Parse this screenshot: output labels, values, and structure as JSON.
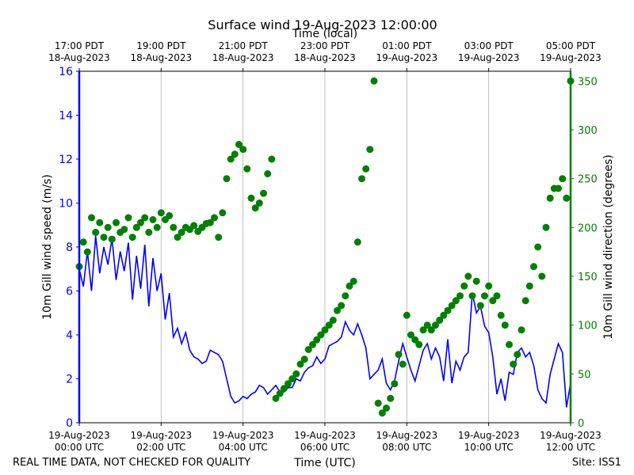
{
  "chart_data": {
    "type": "line",
    "title": "Surface wind 19-Aug-2023 12:00:00",
    "x_top_label": "Time (local)",
    "xlabel": "Time (UTC)",
    "ylabel_left": "10m Gill wind speed (m/s)",
    "ylabel_right": "10m Gill wind direction (degrees)",
    "footer_left": "REAL TIME DATA, NOT CHECKED FOR QUALITY",
    "footer_right": "Site: ISS1",
    "x_range_hours_utc": [
      0,
      12
    ],
    "ylim_left": [
      0,
      16
    ],
    "ylim_right": [
      0,
      360
    ],
    "grid": "vertical",
    "colors": {
      "speed": "#0000ff",
      "direction": "#008000"
    },
    "bottom_ticks": [
      {
        "date": "19-Aug-2023",
        "time": "00:00 UTC"
      },
      {
        "date": "19-Aug-2023",
        "time": "02:00 UTC"
      },
      {
        "date": "19-Aug-2023",
        "time": "04:00 UTC"
      },
      {
        "date": "19-Aug-2023",
        "time": "06:00 UTC"
      },
      {
        "date": "19-Aug-2023",
        "time": "08:00 UTC"
      },
      {
        "date": "19-Aug-2023",
        "time": "10:00 UTC"
      },
      {
        "date": "19-Aug-2023",
        "time": "12:00 UTC"
      }
    ],
    "top_ticks": [
      {
        "time": "17:00 PDT",
        "date": "18-Aug-2023"
      },
      {
        "time": "19:00 PDT",
        "date": "18-Aug-2023"
      },
      {
        "time": "21:00 PDT",
        "date": "18-Aug-2023"
      },
      {
        "time": "23:00 PDT",
        "date": "18-Aug-2023"
      },
      {
        "time": "01:00 PDT",
        "date": "19-Aug-2023"
      },
      {
        "time": "03:00 PDT",
        "date": "19-Aug-2023"
      },
      {
        "time": "05:00 PDT",
        "date": "19-Aug-2023"
      }
    ],
    "left_ticks": [
      "0",
      "2",
      "4",
      "6",
      "8",
      "10",
      "12",
      "14",
      "16"
    ],
    "right_ticks": [
      "0",
      "50",
      "100",
      "150",
      "200",
      "250",
      "300",
      "350"
    ],
    "series": [
      {
        "kind": "line",
        "hours": [
          0.0,
          0.1,
          0.2,
          0.3,
          0.4,
          0.5,
          0.6,
          0.7,
          0.8,
          0.9,
          1.0,
          1.1,
          1.2,
          1.3,
          1.4,
          1.5,
          1.6,
          1.7,
          1.8,
          1.9,
          2.0,
          2.1,
          2.2,
          2.3,
          2.4,
          2.5,
          2.6,
          2.7,
          2.8,
          2.9,
          3.0,
          3.1,
          3.2,
          3.3,
          3.4,
          3.5,
          3.6,
          3.7,
          3.8,
          3.9,
          4.0,
          4.1,
          4.2,
          4.3,
          4.4,
          4.5,
          4.6,
          4.7,
          4.8,
          4.9,
          5.0,
          5.1,
          5.2,
          5.3,
          5.4,
          5.5,
          5.6,
          5.7,
          5.8,
          5.9,
          6.0,
          6.1,
          6.2,
          6.3,
          6.4,
          6.5,
          6.6,
          6.7,
          6.8,
          6.9,
          7.0,
          7.1,
          7.2,
          7.3,
          7.4,
          7.5,
          7.6,
          7.7,
          7.8,
          7.9,
          8.0,
          8.1,
          8.2,
          8.3,
          8.4,
          8.5,
          8.6,
          8.7,
          8.8,
          8.9,
          9.0,
          9.1,
          9.2,
          9.3,
          9.4,
          9.5,
          9.6,
          9.7,
          9.8,
          9.9,
          10.0,
          10.1,
          10.2,
          10.3,
          10.4,
          10.5,
          10.6,
          10.7,
          10.8,
          10.9,
          11.0,
          11.1,
          11.2,
          11.3,
          11.4,
          11.5,
          11.6,
          11.7,
          11.8,
          11.9,
          12.0
        ],
        "values": [
          7.0,
          6.2,
          7.8,
          6.0,
          8.5,
          6.8,
          8.0,
          7.2,
          8.4,
          6.5,
          7.8,
          6.9,
          8.2,
          5.6,
          7.6,
          6.1,
          8.1,
          5.3,
          7.5,
          6.0,
          6.8,
          4.7,
          5.9,
          3.9,
          4.3,
          3.6,
          4.1,
          3.3,
          3.0,
          2.9,
          2.7,
          2.8,
          3.3,
          3.2,
          3.1,
          2.8,
          2.0,
          1.2,
          0.9,
          1.0,
          1.2,
          1.1,
          1.3,
          1.4,
          1.7,
          1.6,
          1.3,
          1.5,
          1.7,
          1.4,
          1.4,
          1.6,
          1.6,
          2.0,
          1.9,
          2.3,
          2.5,
          2.6,
          3.0,
          2.7,
          2.9,
          3.5,
          3.6,
          3.7,
          3.9,
          4.6,
          4.2,
          4.0,
          4.5,
          4.0,
          3.4,
          2.0,
          2.2,
          2.4,
          2.9,
          1.8,
          1.5,
          1.9,
          2.8,
          3.6,
          3.0,
          2.4,
          1.9,
          2.6,
          3.3,
          3.6,
          2.9,
          3.4,
          3.0,
          1.9,
          3.8,
          1.8,
          2.8,
          2.4,
          3.0,
          3.2,
          5.9,
          5.0,
          5.3,
          4.4,
          4.1,
          3.0,
          1.3,
          2.0,
          1.0,
          2.3,
          2.2,
          3.2,
          3.4,
          3.0,
          3.2,
          2.6,
          1.5,
          1.1,
          0.9,
          2.2,
          2.9,
          3.6,
          3.2,
          0.7,
          1.8
        ]
      },
      {
        "kind": "scatter",
        "hours": [
          0.0,
          0.1,
          0.2,
          0.3,
          0.4,
          0.5,
          0.6,
          0.7,
          0.8,
          0.9,
          1.0,
          1.1,
          1.2,
          1.3,
          1.4,
          1.5,
          1.6,
          1.7,
          1.8,
          1.9,
          2.0,
          2.1,
          2.2,
          2.3,
          2.4,
          2.5,
          2.6,
          2.7,
          2.8,
          2.9,
          3.0,
          3.1,
          3.2,
          3.3,
          3.4,
          3.5,
          3.6,
          3.7,
          3.8,
          3.9,
          4.0,
          4.1,
          4.2,
          4.3,
          4.4,
          4.5,
          4.6,
          4.7,
          4.8,
          4.9,
          5.0,
          5.1,
          5.2,
          5.3,
          5.4,
          5.5,
          5.6,
          5.7,
          5.8,
          5.9,
          6.0,
          6.1,
          6.2,
          6.3,
          6.4,
          6.5,
          6.6,
          6.7,
          6.8,
          6.9,
          7.0,
          7.1,
          7.2,
          7.3,
          7.4,
          7.5,
          7.6,
          7.7,
          7.8,
          7.9,
          8.0,
          8.1,
          8.2,
          8.3,
          8.4,
          8.5,
          8.6,
          8.7,
          8.8,
          8.9,
          9.0,
          9.1,
          9.2,
          9.3,
          9.4,
          9.5,
          9.6,
          9.7,
          9.8,
          9.9,
          10.0,
          10.1,
          10.2,
          10.3,
          10.4,
          10.5,
          10.6,
          10.7,
          10.8,
          10.9,
          11.0,
          11.1,
          11.2,
          11.3,
          11.4,
          11.5,
          11.6,
          11.7,
          11.8,
          11.9,
          12.0
        ],
        "values": [
          160,
          185,
          175,
          210,
          195,
          205,
          190,
          200,
          188,
          205,
          195,
          198,
          210,
          190,
          200,
          205,
          210,
          195,
          208,
          200,
          215,
          208,
          212,
          200,
          190,
          195,
          200,
          198,
          202,
          196,
          200,
          204,
          205,
          210,
          190,
          215,
          250,
          270,
          275,
          285,
          280,
          260,
          230,
          220,
          225,
          235,
          255,
          270,
          25,
          30,
          35,
          40,
          45,
          50,
          60,
          65,
          75,
          80,
          85,
          90,
          95,
          100,
          105,
          115,
          120,
          130,
          140,
          145,
          185,
          250,
          260,
          280,
          350,
          20,
          10,
          15,
          25,
          40,
          70,
          60,
          110,
          90,
          85,
          80,
          95,
          100,
          95,
          100,
          105,
          110,
          115,
          120,
          125,
          130,
          140,
          150,
          130,
          145,
          120,
          130,
          140,
          125,
          130,
          110,
          100,
          80,
          60,
          70,
          95,
          125,
          140,
          160,
          180,
          150,
          200,
          230,
          240,
          240,
          250,
          230,
          350
        ]
      }
    ]
  }
}
